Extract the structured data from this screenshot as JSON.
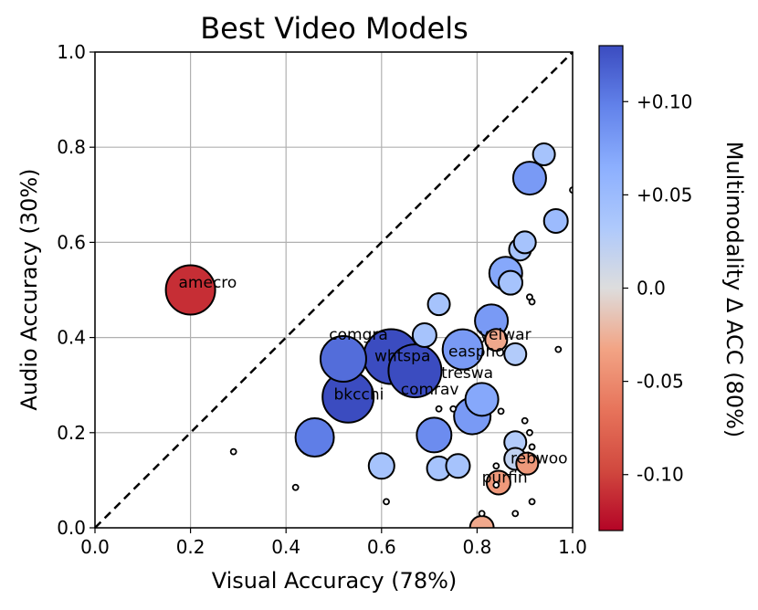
{
  "chart_data": {
    "type": "scatter",
    "title": "Best Video Models",
    "xlabel": "Visual Accuracy (78%)",
    "ylabel": "Audio Accuracy (30%)",
    "xlim": [
      0.0,
      1.0
    ],
    "ylim": [
      0.0,
      1.0
    ],
    "xticks": [
      "0.0",
      "0.2",
      "0.4",
      "0.6",
      "0.8",
      "1.0"
    ],
    "yticks": [
      "0.0",
      "0.2",
      "0.4",
      "0.6",
      "0.8",
      "1.0"
    ],
    "grid": true,
    "diagonal": "dashed y=x reference line",
    "colorbar": {
      "label": "Multimodality Δ ACC (80%)",
      "range": [
        -0.13,
        0.13
      ],
      "ticks": [
        "+0.10",
        "+0.05",
        "0.0",
        "-0.05",
        "-0.10"
      ],
      "tick_values": [
        0.1,
        0.05,
        0.0,
        -0.05,
        -0.1
      ],
      "colormap": "coolwarm",
      "low_color": "#b40426",
      "mid_color": "#dddddd",
      "high_color": "#3b4cc0"
    },
    "points": [
      {
        "x": 0.2,
        "y": 0.5,
        "delta": -0.11,
        "size": 27
      },
      {
        "x": 0.29,
        "y": 0.16,
        "delta": 0.0,
        "size": 3
      },
      {
        "x": 0.42,
        "y": 0.085,
        "delta": 0.0,
        "size": 3
      },
      {
        "x": 0.46,
        "y": 0.19,
        "delta": 0.1,
        "size": 21
      },
      {
        "x": 0.52,
        "y": 0.355,
        "delta": 0.11,
        "size": 25
      },
      {
        "x": 0.53,
        "y": 0.275,
        "delta": 0.13,
        "size": 28
      },
      {
        "x": 0.6,
        "y": 0.13,
        "delta": 0.04,
        "size": 14
      },
      {
        "x": 0.61,
        "y": 0.055,
        "delta": 0.0,
        "size": 3
      },
      {
        "x": 0.62,
        "y": 0.36,
        "delta": 0.13,
        "size": 30
      },
      {
        "x": 0.67,
        "y": 0.33,
        "delta": 0.13,
        "size": 29
      },
      {
        "x": 0.69,
        "y": 0.405,
        "delta": 0.04,
        "size": 13
      },
      {
        "x": 0.71,
        "y": 0.195,
        "delta": 0.09,
        "size": 19
      },
      {
        "x": 0.72,
        "y": 0.47,
        "delta": 0.04,
        "size": 12
      },
      {
        "x": 0.72,
        "y": 0.125,
        "delta": 0.04,
        "size": 13
      },
      {
        "x": 0.72,
        "y": 0.25,
        "delta": 0.0,
        "size": 3
      },
      {
        "x": 0.75,
        "y": 0.25,
        "delta": 0.0,
        "size": 3
      },
      {
        "x": 0.76,
        "y": 0.13,
        "delta": 0.04,
        "size": 13
      },
      {
        "x": 0.77,
        "y": 0.375,
        "delta": 0.08,
        "size": 22
      },
      {
        "x": 0.79,
        "y": 0.235,
        "delta": 0.08,
        "size": 20
      },
      {
        "x": 0.81,
        "y": 0.27,
        "delta": 0.07,
        "size": 18
      },
      {
        "x": 0.81,
        "y": 0.03,
        "delta": 0.0,
        "size": 3
      },
      {
        "x": 0.81,
        "y": 0.0,
        "delta": -0.03,
        "size": 13
      },
      {
        "x": 0.83,
        "y": 0.435,
        "delta": 0.08,
        "size": 18
      },
      {
        "x": 0.84,
        "y": 0.395,
        "delta": -0.03,
        "size": 12
      },
      {
        "x": 0.84,
        "y": 0.09,
        "delta": 0.0,
        "size": 3
      },
      {
        "x": 0.84,
        "y": 0.13,
        "delta": 0.0,
        "size": 3
      },
      {
        "x": 0.85,
        "y": 0.245,
        "delta": 0.0,
        "size": 3
      },
      {
        "x": 0.845,
        "y": 0.095,
        "delta": -0.04,
        "size": 13
      },
      {
        "x": 0.86,
        "y": 0.535,
        "delta": 0.07,
        "size": 18
      },
      {
        "x": 0.87,
        "y": 0.515,
        "delta": 0.04,
        "size": 13
      },
      {
        "x": 0.88,
        "y": 0.365,
        "delta": 0.03,
        "size": 12
      },
      {
        "x": 0.88,
        "y": 0.18,
        "delta": 0.03,
        "size": 12
      },
      {
        "x": 0.88,
        "y": 0.145,
        "delta": 0.02,
        "size": 12
      },
      {
        "x": 0.88,
        "y": 0.03,
        "delta": 0.0,
        "size": 3
      },
      {
        "x": 0.89,
        "y": 0.585,
        "delta": 0.04,
        "size": 12
      },
      {
        "x": 0.9,
        "y": 0.6,
        "delta": 0.04,
        "size": 12
      },
      {
        "x": 0.9,
        "y": 0.225,
        "delta": 0.0,
        "size": 3
      },
      {
        "x": 0.905,
        "y": 0.135,
        "delta": -0.04,
        "size": 12
      },
      {
        "x": 0.91,
        "y": 0.485,
        "delta": 0.0,
        "size": 3
      },
      {
        "x": 0.91,
        "y": 0.2,
        "delta": 0.0,
        "size": 3
      },
      {
        "x": 0.915,
        "y": 0.475,
        "delta": 0.0,
        "size": 3
      },
      {
        "x": 0.915,
        "y": 0.17,
        "delta": 0.0,
        "size": 3
      },
      {
        "x": 0.915,
        "y": 0.055,
        "delta": 0.0,
        "size": 3
      },
      {
        "x": 0.91,
        "y": 0.735,
        "delta": 0.08,
        "size": 18
      },
      {
        "x": 0.94,
        "y": 0.785,
        "delta": 0.04,
        "size": 12
      },
      {
        "x": 0.965,
        "y": 0.645,
        "delta": 0.05,
        "size": 13
      },
      {
        "x": 0.97,
        "y": 0.375,
        "delta": 0.0,
        "size": 3
      },
      {
        "x": 1.0,
        "y": 0.71,
        "delta": 0.0,
        "size": 3
      }
    ],
    "annotations": [
      {
        "text": "amecro",
        "x": 0.175,
        "y": 0.505
      },
      {
        "text": "comgra",
        "x": 0.49,
        "y": 0.395
      },
      {
        "text": "whtspa",
        "x": 0.585,
        "y": 0.35
      },
      {
        "text": "bkcchi",
        "x": 0.5,
        "y": 0.27
      },
      {
        "text": "comrav",
        "x": 0.64,
        "y": 0.28
      },
      {
        "text": "yelwar",
        "x": 0.805,
        "y": 0.395
      },
      {
        "text": "easpho",
        "x": 0.74,
        "y": 0.36
      },
      {
        "text": "treswa",
        "x": 0.725,
        "y": 0.315
      },
      {
        "text": "rebwoo",
        "x": 0.87,
        "y": 0.135
      },
      {
        "text": "purfin",
        "x": 0.81,
        "y": 0.095
      }
    ]
  }
}
